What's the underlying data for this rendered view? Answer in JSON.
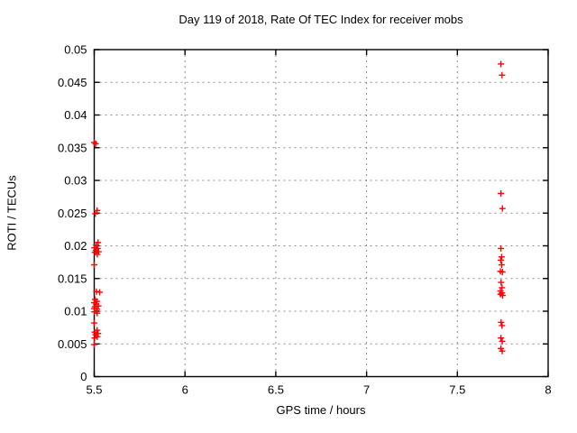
{
  "figure": {
    "background": "#ffffff",
    "border_color": "#000000",
    "grid_color": "#8c8c8c",
    "marker_color": "#ff0000"
  },
  "chart_data": {
    "type": "scatter",
    "title": "Day 119 of 2018, Rate Of TEC Index for receiver mobs",
    "xlabel": "GPS time / hours",
    "ylabel": "ROTI / TECUs",
    "xlim": [
      5.5,
      8
    ],
    "ylim": [
      0,
      0.05
    ],
    "xticks": [
      5.5,
      6,
      6.5,
      7,
      7.5,
      8
    ],
    "xtick_labels": [
      "5.5",
      "6",
      "6.5",
      "7",
      "7.5",
      "8"
    ],
    "yticks": [
      0,
      0.005,
      0.01,
      0.015,
      0.02,
      0.025,
      0.03,
      0.035,
      0.04,
      0.045,
      0.05
    ],
    "ytick_labels": [
      "0",
      "0.005",
      "0.01",
      "0.015",
      "0.02",
      "0.025",
      "0.03",
      "0.035",
      "0.04",
      "0.045",
      "0.05"
    ],
    "grid": true,
    "grid_style": "dashed",
    "legend": "none",
    "marker": {
      "shape": "plus",
      "size": 7,
      "color": "#ff0000"
    },
    "series": [
      {
        "name": "ROTI",
        "points": [
          [
            5.5,
            0.0358
          ],
          [
            5.508,
            0.0356
          ],
          [
            5.516,
            0.0254
          ],
          [
            5.506,
            0.0249
          ],
          [
            5.521,
            0.0205
          ],
          [
            5.511,
            0.0201
          ],
          [
            5.501,
            0.0197
          ],
          [
            5.519,
            0.0196
          ],
          [
            5.509,
            0.0193
          ],
          [
            5.524,
            0.0191
          ],
          [
            5.504,
            0.019
          ],
          [
            5.517,
            0.0187
          ],
          [
            5.5,
            0.0171
          ],
          [
            5.512,
            0.013
          ],
          [
            5.53,
            0.0129
          ],
          [
            5.505,
            0.0118
          ],
          [
            5.514,
            0.0115
          ],
          [
            5.5,
            0.0113
          ],
          [
            5.511,
            0.0111
          ],
          [
            5.523,
            0.0108
          ],
          [
            5.504,
            0.0107
          ],
          [
            5.5,
            0.0104
          ],
          [
            5.515,
            0.0103
          ],
          [
            5.501,
            0.0099
          ],
          [
            5.516,
            0.0097
          ],
          [
            5.5,
            0.0082
          ],
          [
            5.516,
            0.0071
          ],
          [
            5.503,
            0.0068
          ],
          [
            5.521,
            0.0066
          ],
          [
            5.508,
            0.0064
          ],
          [
            5.517,
            0.0061
          ],
          [
            5.502,
            0.0059
          ],
          [
            5.5,
            0.0049
          ],
          [
            7.74,
            0.0478
          ],
          [
            7.746,
            0.0461
          ],
          [
            7.74,
            0.028
          ],
          [
            7.748,
            0.0257
          ],
          [
            7.74,
            0.0196
          ],
          [
            7.744,
            0.0183
          ],
          [
            7.739,
            0.0178
          ],
          [
            7.744,
            0.0171
          ],
          [
            7.737,
            0.0161
          ],
          [
            7.748,
            0.016
          ],
          [
            7.741,
            0.0144
          ],
          [
            7.746,
            0.0136
          ],
          [
            7.737,
            0.0131
          ],
          [
            7.746,
            0.0128
          ],
          [
            7.738,
            0.0126
          ],
          [
            7.749,
            0.0124
          ],
          [
            7.741,
            0.0083
          ],
          [
            7.746,
            0.0078
          ],
          [
            7.74,
            0.0059
          ],
          [
            7.747,
            0.0054
          ],
          [
            7.74,
            0.0043
          ],
          [
            7.747,
            0.0039
          ]
        ]
      }
    ]
  }
}
